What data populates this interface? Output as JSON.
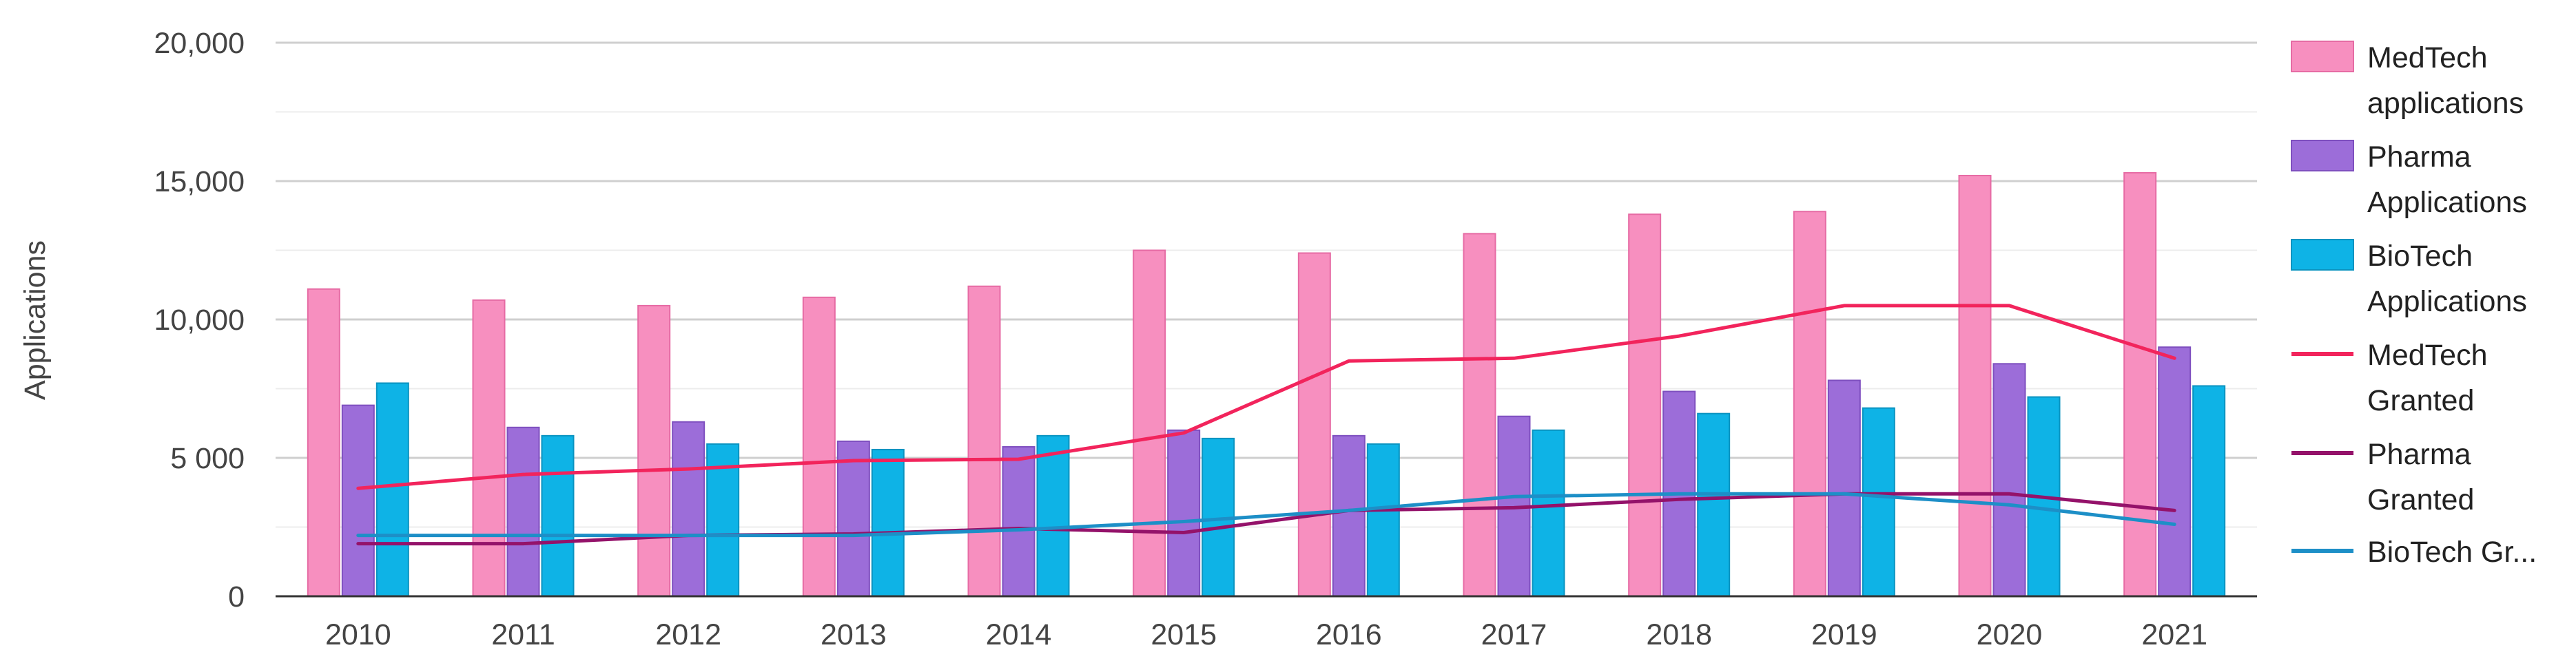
{
  "chart_data": {
    "type": "bar",
    "title": "",
    "xlabel": "",
    "ylabel": "Applications",
    "ylim": [
      0,
      20000
    ],
    "grid": true,
    "legend_position": "right",
    "categories": [
      "2010",
      "2011",
      "2012",
      "2013",
      "2014",
      "2015",
      "2016",
      "2017",
      "2018",
      "2019",
      "2020",
      "2021"
    ],
    "y_ticks": [
      {
        "value": 0,
        "label": "0"
      },
      {
        "value": 5000,
        "label": "5 000"
      },
      {
        "value": 10000,
        "label": "10,000"
      },
      {
        "value": 15000,
        "label": "15,000"
      },
      {
        "value": 20000,
        "label": "20,000"
      }
    ],
    "series": [
      {
        "name": "MedTech applications",
        "type": "bar",
        "color": "#f78fbf",
        "border": "#e66ba4",
        "legend_lines": [
          "MedTech",
          "applications"
        ],
        "values": [
          11100,
          10700,
          10500,
          10800,
          11200,
          12500,
          12400,
          13100,
          13800,
          13900,
          15200,
          15300
        ]
      },
      {
        "name": "Pharma Applications",
        "type": "bar",
        "color": "#9c6dd9",
        "border": "#7e4fbf",
        "legend_lines": [
          "Pharma",
          "Applications"
        ],
        "values": [
          6900,
          6100,
          6300,
          5600,
          5400,
          6000,
          5800,
          6500,
          7400,
          7800,
          8400,
          9000
        ]
      },
      {
        "name": "BioTech Applications",
        "type": "bar",
        "color": "#0eb3e6",
        "border": "#0a93c0",
        "legend_lines": [
          "BioTech",
          "Applications"
        ],
        "values": [
          7700,
          5800,
          5500,
          5300,
          5800,
          5700,
          5500,
          6000,
          6600,
          6800,
          7200,
          7600
        ]
      },
      {
        "name": "MedTech Granted",
        "type": "line",
        "color": "#f2245c",
        "legend_lines": [
          "MedTech",
          "Granted"
        ],
        "values": [
          3900,
          4400,
          4600,
          4900,
          4950,
          5900,
          8500,
          8600,
          9400,
          10500,
          10500,
          8600
        ]
      },
      {
        "name": "Pharma Granted",
        "type": "line",
        "color": "#94126a",
        "legend_lines": [
          "Pharma",
          "Granted"
        ],
        "values": [
          1900,
          1900,
          2200,
          2250,
          2450,
          2300,
          3100,
          3200,
          3500,
          3700,
          3700,
          3100
        ]
      },
      {
        "name": "BioTech Gr...",
        "type": "line",
        "color": "#1d8fc7",
        "legend_lines": [
          "BioTech Gr..."
        ],
        "values": [
          2200,
          2200,
          2200,
          2200,
          2400,
          2700,
          3100,
          3600,
          3700,
          3700,
          3300,
          2600
        ]
      }
    ]
  }
}
